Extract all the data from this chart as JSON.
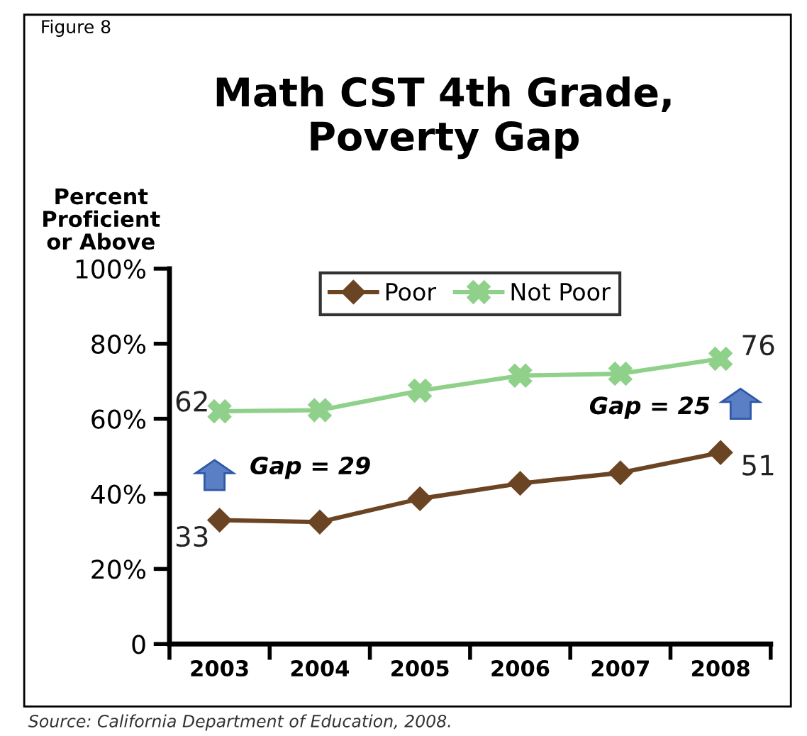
{
  "chart_data": {
    "type": "line",
    "title": "Math CST 4th Grade,\nPoverty Gap",
    "ylabel": "Percent\nProficient\nor Above",
    "categories": [
      "2003",
      "2004",
      "2005",
      "2006",
      "2007",
      "2008"
    ],
    "series": [
      {
        "name": "Poor",
        "color": "#6b4423",
        "marker": "diamond",
        "values": [
          33,
          32.5,
          38.7,
          42.8,
          45.6,
          51
        ],
        "value_labels": [
          "33",
          null,
          null,
          null,
          null,
          "51"
        ]
      },
      {
        "name": "Not Poor",
        "color": "#8fd18a",
        "marker": "cross",
        "values": [
          62,
          62.3,
          67.5,
          71.5,
          72,
          76
        ],
        "value_labels": [
          "62",
          null,
          null,
          null,
          null,
          "76"
        ]
      }
    ],
    "ylim": [
      0,
      100
    ],
    "yticks": [
      {
        "value": 0,
        "label": "0"
      },
      {
        "value": 20,
        "label": "20%"
      },
      {
        "value": 40,
        "label": "40%"
      },
      {
        "value": 60,
        "label": "60%"
      },
      {
        "value": 80,
        "label": "80%"
      },
      {
        "value": 100,
        "label": "100%"
      }
    ],
    "grid": false,
    "legend": "top",
    "line_style": "solid",
    "annotations": [
      "Figure 8",
      "Gap = 29",
      "Gap = 25",
      "Source: California Department of Education, 2008."
    ]
  }
}
